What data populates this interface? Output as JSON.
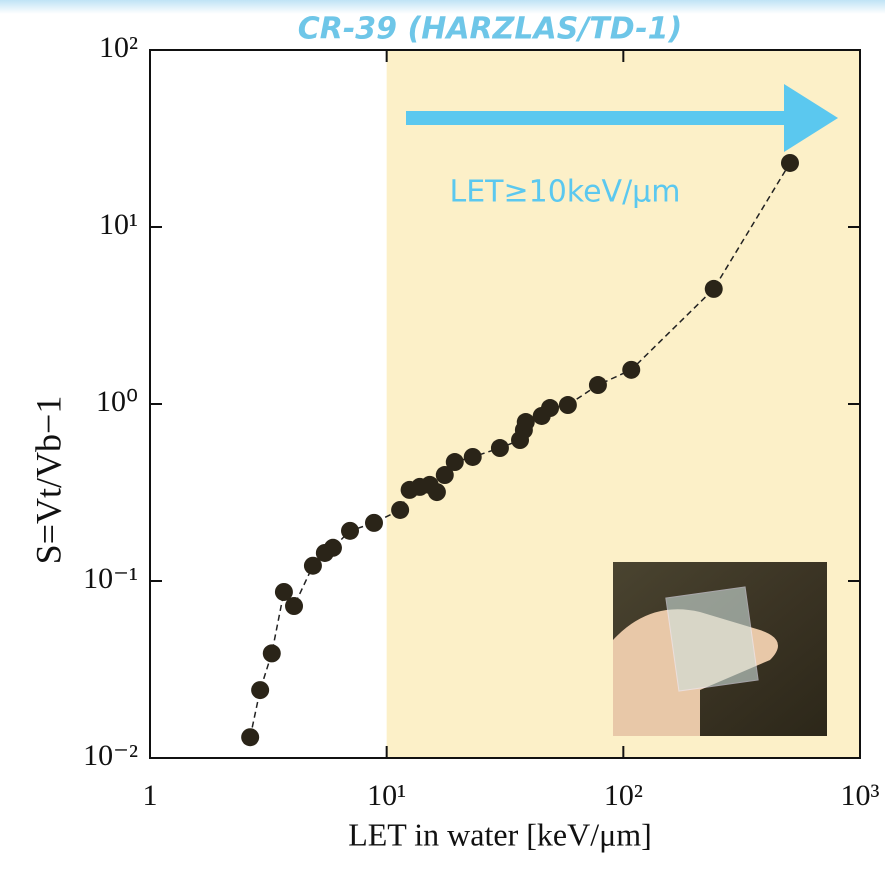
{
  "chart_data": {
    "type": "scatter",
    "title": "CR-39 (HARZLAS/TD-1)",
    "annotation": "LET≥10keV/μm",
    "x_label": "LET in water [keV/μm]",
    "y_label": "S=Vt/Vb−1",
    "x": [
      2.65,
      2.92,
      3.27,
      3.68,
      4.06,
      4.88,
      5.48,
      5.93,
      7.0,
      8.84,
      11.4,
      12.5,
      13.8,
      15.2,
      16.3,
      17.6,
      19.4,
      23.1,
      30.1,
      36.6,
      38.0,
      38.7,
      45.2,
      49.0,
      58.3,
      78.1,
      108,
      241,
      506
    ],
    "values": [
      0.0131,
      0.0242,
      0.039,
      0.0867,
      0.0722,
      0.122,
      0.144,
      0.154,
      0.192,
      0.213,
      0.252,
      0.327,
      0.34,
      0.349,
      0.318,
      0.397,
      0.47,
      0.502,
      0.564,
      0.626,
      0.713,
      0.791,
      0.856,
      0.949,
      0.987,
      1.28,
      1.56,
      4.47,
      23.0
    ],
    "color": "#2a2418",
    "xlim": [
      1,
      1000
    ],
    "ylim": [
      0.01,
      100
    ],
    "xscale": "log",
    "yscale": "log",
    "xticks": [
      1,
      {
        "value": 10,
        "label": "10¹"
      },
      {
        "value": 100,
        "label": "10²"
      },
      {
        "value": 1000,
        "label": "10³"
      }
    ],
    "yticks": [
      {
        "value": 0.01,
        "label": "10⁻²"
      },
      {
        "value": 0.1,
        "label": "10⁻¹"
      },
      {
        "value": 1,
        "label": "10⁰"
      },
      {
        "value": 10,
        "label": "10¹"
      },
      {
        "value": 100,
        "label": "10²"
      }
    ],
    "highlight_xrange": [
      10,
      1000
    ],
    "highlight_color": "#fcf0c8"
  }
}
